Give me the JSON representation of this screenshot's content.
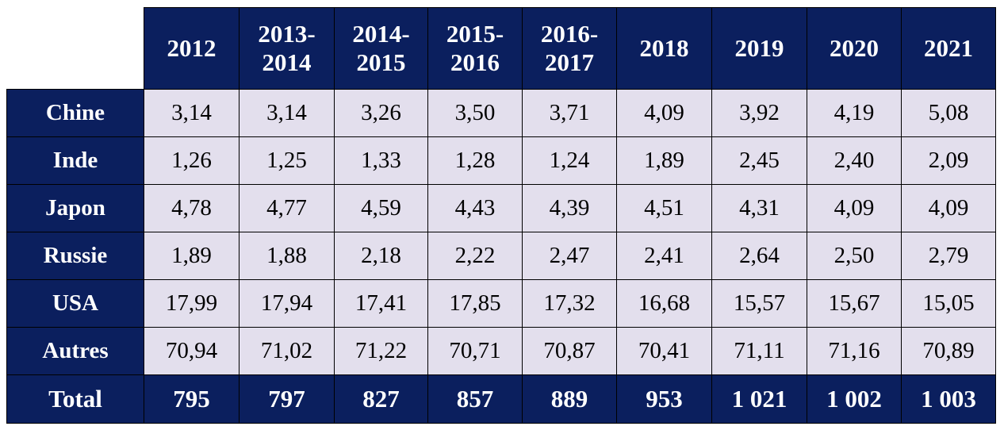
{
  "table": {
    "columns": [
      "2012",
      "2013-\n2014",
      "2014-\n2015",
      "2015-\n2016",
      "2016-\n2017",
      "2018",
      "2019",
      "2020",
      "2021"
    ],
    "rows": [
      {
        "label": "Chine",
        "values": [
          "3,14",
          "3,14",
          "3,26",
          "3,50",
          "3,71",
          "4,09",
          "3,92",
          "4,19",
          "5,08"
        ]
      },
      {
        "label": "Inde",
        "values": [
          "1,26",
          "1,25",
          "1,33",
          "1,28",
          "1,24",
          "1,89",
          "2,45",
          "2,40",
          "2,09"
        ]
      },
      {
        "label": "Japon",
        "values": [
          "4,78",
          "4,77",
          "4,59",
          "4,43",
          "4,39",
          "4,51",
          "4,31",
          "4,09",
          "4,09"
        ]
      },
      {
        "label": "Russie",
        "values": [
          "1,89",
          "1,88",
          "2,18",
          "2,22",
          "2,47",
          "2,41",
          "2,64",
          "2,50",
          "2,79"
        ]
      },
      {
        "label": "USA",
        "values": [
          "17,99",
          "17,94",
          "17,41",
          "17,85",
          "17,32",
          "16,68",
          "15,57",
          "15,67",
          "15,05"
        ]
      },
      {
        "label": "Autres",
        "values": [
          "70,94",
          "71,02",
          "71,22",
          "70,71",
          "70,87",
          "70,41",
          "71,11",
          "71,16",
          "70,89"
        ]
      }
    ],
    "total": {
      "label": "Total",
      "values": [
        "795",
        "797",
        "827",
        "857",
        "889",
        "953",
        "1 021",
        "1 002",
        "1 003"
      ]
    }
  },
  "colors": {
    "header_bg": "#0b1f5e",
    "header_text": "#ffffff",
    "cell_bg": "#e3dfed",
    "cell_text": "#000000",
    "border": "#000000"
  }
}
